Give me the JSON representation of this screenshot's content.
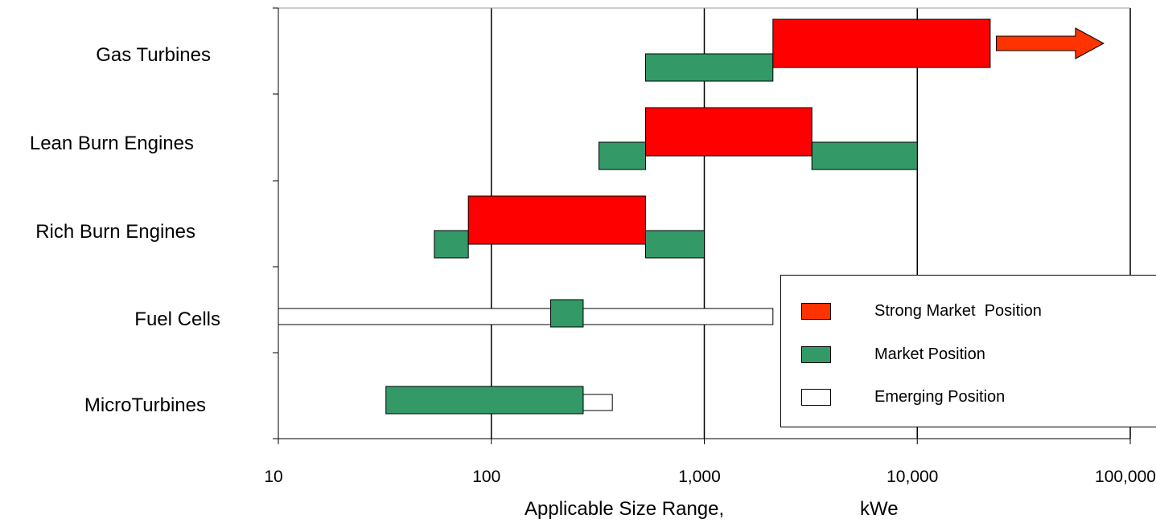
{
  "chart_data": {
    "type": "bar",
    "orientation": "horizontal",
    "x_scale": "log",
    "xlim": [
      10,
      100000
    ],
    "xlabel": "Applicable Size Range,",
    "xlabel_unit": "kWe",
    "xticks": [
      "10",
      "100",
      "1,000",
      "10,000",
      "100,000"
    ],
    "grid": "vertical",
    "legend_position": "bottom-right",
    "categories": [
      "Gas Turbines",
      "Lean Burn Engines",
      "Rich Burn Engines",
      "Fuel Cells",
      "MicroTurbines"
    ],
    "series": [
      {
        "name": "Strong Market  Position",
        "color": "#ff0000",
        "ranges": [
          {
            "category": "Gas Turbines",
            "from": 2100,
            "to": 22000
          },
          {
            "category": "Lean Burn Engines",
            "from": 530,
            "to": 3200
          },
          {
            "category": "Rich Burn Engines",
            "from": 78,
            "to": 530
          }
        ]
      },
      {
        "name": "Market Position",
        "color": "#339966",
        "ranges": [
          {
            "category": "Gas Turbines",
            "from": 530,
            "to": 2100
          },
          {
            "category": "Lean Burn Engines",
            "from": 320,
            "to": 530
          },
          {
            "category": "Lean Burn Engines",
            "from": 3200,
            "to": 10000
          },
          {
            "category": "Rich Burn Engines",
            "from": 54,
            "to": 78
          },
          {
            "category": "Rich Burn Engines",
            "from": 530,
            "to": 1000
          },
          {
            "category": "Fuel Cells",
            "from": 190,
            "to": 270
          },
          {
            "category": "MicroTurbines",
            "from": 32,
            "to": 270
          }
        ]
      },
      {
        "name": "Emerging Position",
        "color": "#ffffff",
        "ranges": [
          {
            "category": "Fuel Cells",
            "from": 10,
            "to": 2100
          },
          {
            "category": "MicroTurbines",
            "from": 270,
            "to": 370
          }
        ]
      }
    ],
    "annotations": [
      {
        "type": "arrow",
        "category": "Gas Turbines",
        "from": 23500,
        "to": 75000,
        "color": "#ff3300"
      }
    ]
  }
}
